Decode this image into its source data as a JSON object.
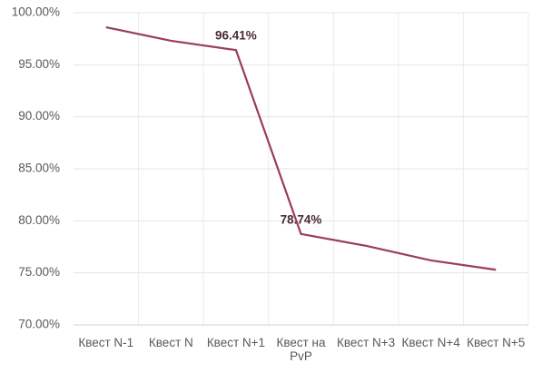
{
  "chart_data": {
    "type": "line",
    "categories": [
      "Квест N-1",
      "Квест N",
      "Квест N+1",
      "Квест на PvP",
      "Квест N+3",
      "Квест N+4",
      "Квест N+5"
    ],
    "series": [
      {
        "color": "#9a3d5a",
        "values": [
          98.6,
          97.3,
          96.41,
          78.74,
          77.6,
          76.2,
          75.3
        ],
        "value_labels": [
          null,
          null,
          "96.41%",
          "78.74%",
          null,
          null,
          null
        ]
      }
    ],
    "ylim": [
      70,
      100
    ],
    "yticks": [
      {
        "value": 70,
        "label": "70.00%"
      },
      {
        "value": 75,
        "label": "75.00%"
      },
      {
        "value": 80,
        "label": "80.00%"
      },
      {
        "value": 85,
        "label": "85.00%"
      },
      {
        "value": 90,
        "label": "90.00%"
      },
      {
        "value": 95,
        "label": "95.00%"
      },
      {
        "value": 100,
        "label": "100.00%"
      }
    ],
    "grid": true
  }
}
